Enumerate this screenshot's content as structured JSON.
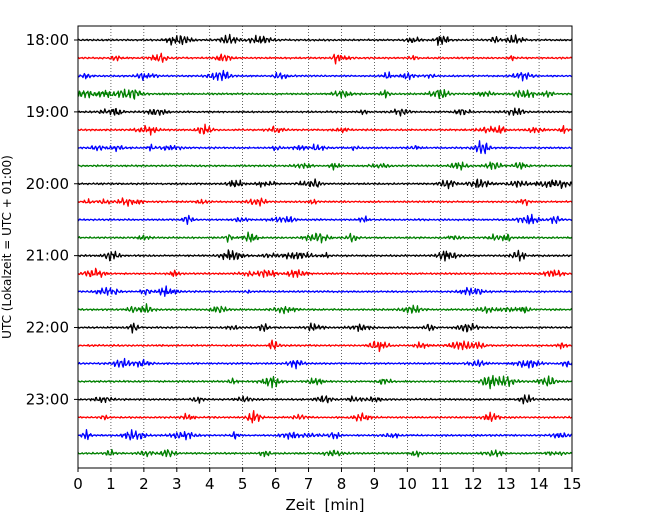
{
  "chart_data": {
    "type": "line",
    "title": "",
    "xlabel": "Zeit  [min]",
    "ylabel": "UTC (Lokalzeit = UTC + 01:00)",
    "xlim": [
      0,
      15
    ],
    "x_ticks": [
      "0",
      "1",
      "2",
      "3",
      "4",
      "5",
      "6",
      "7",
      "8",
      "9",
      "10",
      "11",
      "12",
      "13",
      "14",
      "15"
    ],
    "y_ticks": [
      "18:00",
      "19:00",
      "20:00",
      "21:00",
      "22:00",
      "23:00"
    ],
    "grid": "x-dotted",
    "trace_minutes": 15,
    "trace_count": 24,
    "start_time": "18:00",
    "trace_colors": [
      "#000000",
      "#ff0000",
      "#0000ff",
      "#008000"
    ]
  }
}
